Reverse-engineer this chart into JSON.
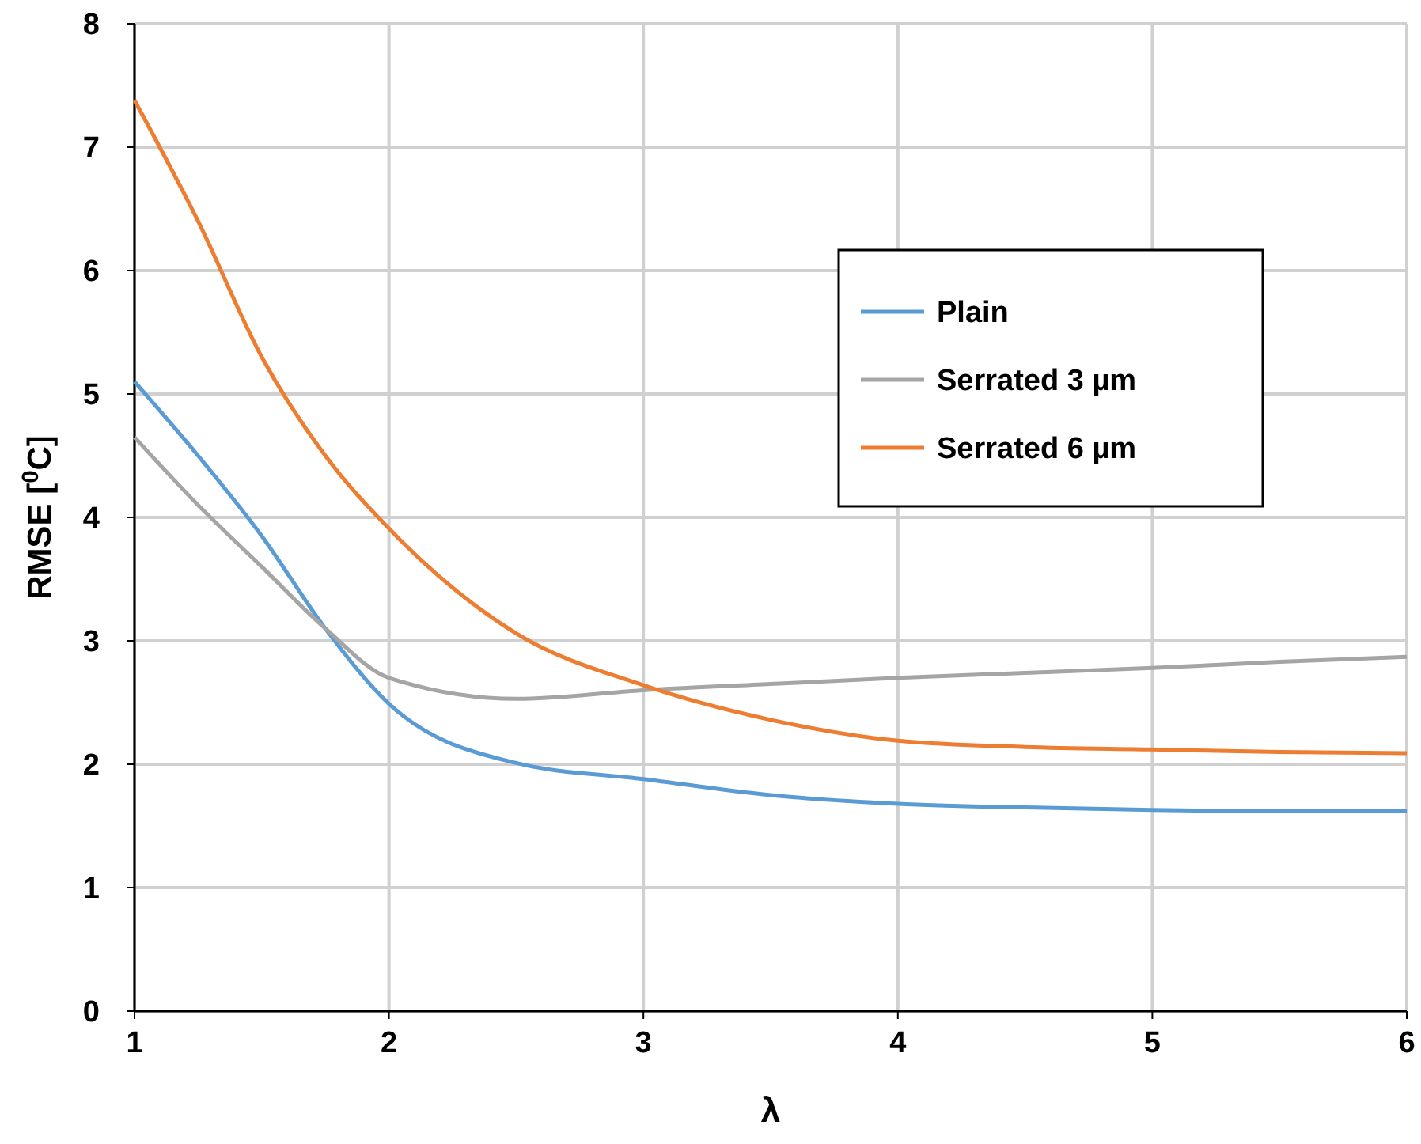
{
  "chart_data": {
    "type": "line",
    "xlabel": "λ",
    "ylabel": "RMSE [$^{0}$C]",
    "xlim": [
      1,
      6
    ],
    "ylim": [
      0,
      8
    ],
    "xticks": [
      1,
      2,
      3,
      4,
      5,
      6
    ],
    "yticks": [
      0,
      1,
      2,
      3,
      4,
      5,
      6,
      7,
      8
    ],
    "grid": true,
    "legend": "right",
    "marker": "none",
    "line_style": "solid",
    "x": [
      1,
      1.25,
      1.5,
      1.75,
      2,
      2.5,
      3,
      3.5,
      4,
      4.5,
      5,
      5.5,
      6
    ],
    "series": [
      {
        "name": "Plain",
        "color": "#5b9bd5",
        "values": [
          5.1,
          4.5,
          3.85,
          3.1,
          2.49,
          2.01,
          1.88,
          1.75,
          1.68,
          1.65,
          1.63,
          1.62,
          1.62
        ]
      },
      {
        "name": "Serrated 3 µm",
        "color": "#a5a5a5",
        "values": [
          4.65,
          4.1,
          3.6,
          3.1,
          2.7,
          2.53,
          2.6,
          2.65,
          2.7,
          2.74,
          2.78,
          2.83,
          2.87
        ]
      },
      {
        "name": "Serrated 6 µm",
        "color": "#ed7d31",
        "values": [
          7.38,
          6.4,
          5.3,
          4.5,
          3.91,
          3.06,
          2.64,
          2.36,
          2.19,
          2.14,
          2.12,
          2.1,
          2.09
        ]
      }
    ]
  }
}
